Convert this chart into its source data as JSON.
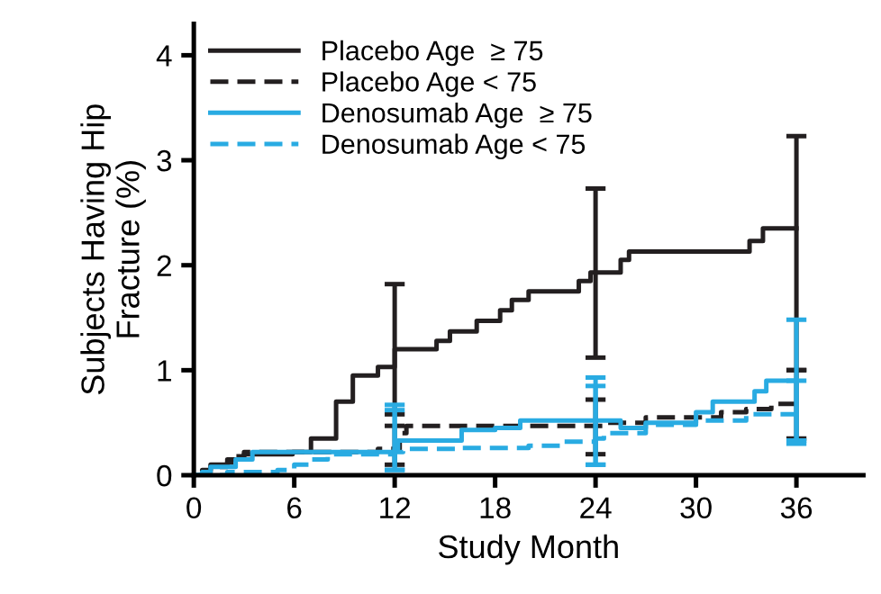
{
  "chart_data": {
    "type": "step",
    "xlabel": "Study Month",
    "ylabel": "Subjects Having Hip\nFracture (%)",
    "xlim": [
      0,
      40
    ],
    "ylim": [
      0,
      4.3
    ],
    "xticks": [
      0,
      6,
      12,
      18,
      24,
      30,
      36
    ],
    "yticks": [
      0,
      1,
      2,
      3,
      4
    ],
    "legend": "top left",
    "grid": false,
    "series": [
      {
        "name": "Placebo Age  ≥ 75",
        "color": "#231f20",
        "line_style": "solid",
        "x": [
          0,
          0.5,
          1,
          2,
          3,
          5.9,
          7,
          8.5,
          9.5,
          11,
          12,
          14.5,
          15.3,
          16.9,
          18.3,
          19,
          20,
          23,
          23.7,
          24,
          25.5,
          26,
          33.2,
          34,
          36
        ],
        "values": [
          0,
          0.05,
          0.1,
          0.15,
          0.2,
          0.22,
          0.35,
          0.7,
          0.95,
          1.03,
          1.2,
          1.28,
          1.37,
          1.47,
          1.57,
          1.67,
          1.75,
          1.85,
          1.93,
          1.93,
          2.05,
          2.13,
          2.23,
          2.35,
          2.35
        ],
        "errors": [
          null,
          null,
          null,
          null,
          null,
          null,
          null,
          null,
          null,
          null,
          [
            0.58,
            1.82
          ],
          null,
          null,
          null,
          null,
          null,
          null,
          null,
          null,
          [
            1.12,
            2.73
          ],
          null,
          null,
          null,
          null,
          [
            1.0,
            3.23
          ]
        ]
      },
      {
        "name": "Placebo Age < 75",
        "color": "#231f20",
        "line_style": "dashed",
        "x": [
          0,
          0.5,
          1,
          2,
          2.5,
          3,
          11,
          12,
          12.3,
          12.7,
          24,
          24.5,
          27,
          31.5,
          33,
          34.5,
          36
        ],
        "values": [
          0,
          0.03,
          0.08,
          0.12,
          0.18,
          0.22,
          0.25,
          0.25,
          0.4,
          0.47,
          0.47,
          0.5,
          0.55,
          0.6,
          0.63,
          0.68,
          0.68
        ],
        "errors": [
          null,
          null,
          null,
          null,
          null,
          null,
          null,
          [
            0.1,
            0.47
          ],
          null,
          null,
          [
            0.2,
            0.72
          ],
          null,
          null,
          null,
          null,
          null,
          [
            0.35,
            1.0
          ]
        ]
      },
      {
        "name": "Denosumab Age  ≥ 75",
        "color": "#29abe2",
        "line_style": "solid",
        "x": [
          0,
          0.5,
          1,
          2.5,
          3.5,
          12,
          12.2,
          16,
          18,
          19.5,
          24,
          25.5,
          27,
          30,
          31,
          33.5,
          34.2,
          36
        ],
        "values": [
          0,
          0.03,
          0.08,
          0.15,
          0.22,
          0.25,
          0.33,
          0.43,
          0.45,
          0.52,
          0.52,
          0.45,
          0.5,
          0.6,
          0.7,
          0.8,
          0.9,
          0.9
        ],
        "errors": [
          null,
          null,
          null,
          null,
          null,
          [
            0.05,
            0.67
          ],
          null,
          null,
          null,
          null,
          [
            0.1,
            0.93
          ],
          null,
          null,
          null,
          null,
          null,
          null,
          [
            0.33,
            1.48
          ]
        ]
      },
      {
        "name": "Denosumab Age < 75",
        "color": "#29abe2",
        "line_style": "dashed",
        "x": [
          0,
          2,
          5,
          6,
          7,
          8,
          12,
          12.5,
          16,
          20,
          22,
          24,
          24.5,
          27,
          30,
          33,
          36
        ],
        "values": [
          0,
          0.03,
          0.05,
          0.1,
          0.15,
          0.2,
          0.22,
          0.25,
          0.26,
          0.28,
          0.32,
          0.35,
          0.4,
          0.48,
          0.52,
          0.58,
          0.6
        ],
        "errors": [
          null,
          null,
          null,
          null,
          null,
          null,
          [
            0.05,
            0.62
          ],
          null,
          null,
          null,
          null,
          [
            0.1,
            0.85
          ],
          null,
          null,
          null,
          null,
          [
            0.3,
            0.9
          ]
        ]
      }
    ]
  }
}
